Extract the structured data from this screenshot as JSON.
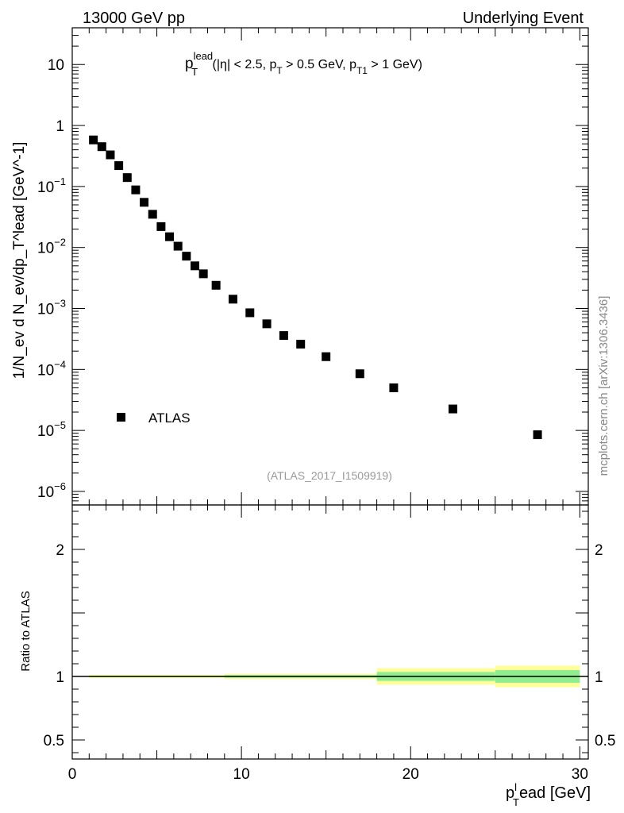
{
  "header": {
    "left": "13000 GeV pp",
    "right": "Underlying Event"
  },
  "watermark": "mcplots.cern.ch [arXiv:1306.3436]",
  "chart_data": [
    {
      "type": "scatter",
      "panel": "main",
      "title_main": "p",
      "title_sup": "lead",
      "title_sub": "T",
      "title_rest": " (|η| < 2.5, p",
      "title_sub2": "T",
      "title_rest2": " > 0.5 GeV, p",
      "title_sub3": "T1",
      "title_rest3": " > 1 GeV)",
      "analysis_tag": "(ATLAS_2017_I1509919)",
      "ylabel": "1/N_ev d N_ev/dp_T^lead [GeV^-1]",
      "yscale": "log",
      "ylim": [
        6e-07,
        40
      ],
      "xlim": [
        0,
        30.5
      ],
      "y_ticks": [
        {
          "value": 10,
          "label": "10",
          "sup": ""
        },
        {
          "value": 1,
          "label": "1",
          "sup": ""
        },
        {
          "value": 0.1,
          "label": "10",
          "sup": "−1"
        },
        {
          "value": 0.01,
          "label": "10",
          "sup": "−2"
        },
        {
          "value": 0.001,
          "label": "10",
          "sup": "−3"
        },
        {
          "value": 0.0001,
          "label": "10",
          "sup": "−4"
        },
        {
          "value": 1e-05,
          "label": "10",
          "sup": "−5"
        },
        {
          "value": 1e-06,
          "label": "10",
          "sup": "−6"
        }
      ],
      "legend": {
        "placement": "bottom-left",
        "label": "ATLAS"
      },
      "series": [
        {
          "name": "ATLAS",
          "x": [
            1.25,
            1.75,
            2.25,
            2.75,
            3.25,
            3.75,
            4.25,
            4.75,
            5.25,
            5.75,
            6.25,
            6.75,
            7.25,
            7.75,
            8.5,
            9.5,
            10.5,
            11.5,
            12.5,
            13.5,
            15.0,
            17.0,
            19.0,
            22.5,
            27.5
          ],
          "y": [
            0.58,
            0.45,
            0.33,
            0.22,
            0.14,
            0.088,
            0.055,
            0.035,
            0.022,
            0.015,
            0.0105,
            0.0072,
            0.005,
            0.0037,
            0.0024,
            0.00142,
            0.00085,
            0.00056,
            0.00036,
            0.00026,
            0.000162,
            8.5e-05,
            5e-05,
            2.25e-05,
            8.5e-06
          ]
        }
      ]
    },
    {
      "type": "area",
      "panel": "ratio",
      "ylabel": "Ratio to ATLAS",
      "xlabel_main": "p",
      "xlabel_sub": "T",
      "xlabel_sup": "l",
      "xlabel_rest": "ead [GeV]",
      "ylim": [
        0.35,
        2.35
      ],
      "xlim": [
        0,
        30.5
      ],
      "y_ticks": [
        {
          "value": 2,
          "label": "2"
        },
        {
          "value": 1,
          "label": "1"
        },
        {
          "value": 0.5,
          "label": "0.5"
        }
      ],
      "x_ticks": [
        {
          "value": 0,
          "label": "0"
        },
        {
          "value": 10,
          "label": "10"
        },
        {
          "value": 20,
          "label": "20"
        },
        {
          "value": 30,
          "label": "30"
        }
      ],
      "bands": [
        {
          "x0": 1.0,
          "x1": 9.0,
          "inner": 0.006,
          "outer": 0.012
        },
        {
          "x0": 9.0,
          "x1": 18.0,
          "inner": 0.01,
          "outer": 0.02
        },
        {
          "x0": 18.0,
          "x1": 25.0,
          "inner": 0.035,
          "outer": 0.065
        },
        {
          "x0": 25.0,
          "x1": 30.0,
          "inner": 0.05,
          "outer": 0.085
        }
      ],
      "reference_line": 1,
      "colors": {
        "inner": "#90ee90",
        "outer": "#ffff99"
      }
    }
  ]
}
